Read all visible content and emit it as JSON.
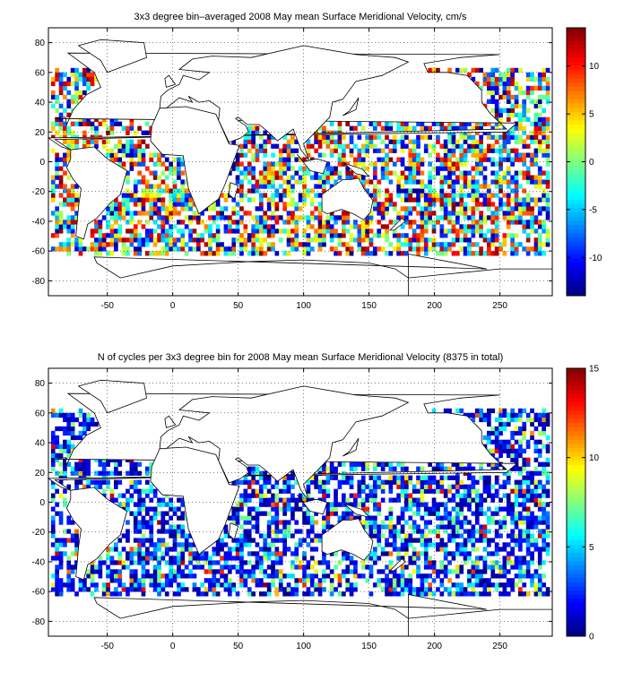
{
  "chart_data": [
    {
      "type": "heatmap",
      "title": "3x3 degree bin–averaged 2008 May mean Surface Meridional Velocity, cm/s",
      "xlabel": "",
      "ylabel": "",
      "xlim": [
        -95,
        290
      ],
      "ylim": [
        -90,
        90
      ],
      "xticks": [
        -50,
        0,
        50,
        100,
        150,
        200,
        250
      ],
      "yticks": [
        -80,
        -60,
        -40,
        -20,
        0,
        20,
        40,
        60,
        80
      ],
      "grid": true,
      "colorbar": {
        "clim": [
          -14,
          14
        ],
        "ticks": [
          -10,
          -5,
          0,
          5,
          10
        ],
        "colormap": "jet"
      },
      "bin_size_deg": 3,
      "values_description_note": ""
    },
    {
      "type": "heatmap",
      "title": "N of cycles per 3x3 degree bin for 2008 May mean Surface Meridional Velocity (8375 in total)",
      "xlabel": "",
      "ylabel": "",
      "xlim": [
        -95,
        290
      ],
      "ylim": [
        -90,
        90
      ],
      "xticks": [
        -50,
        0,
        50,
        100,
        150,
        200,
        250
      ],
      "yticks": [
        -80,
        -60,
        -40,
        -20,
        0,
        20,
        40,
        60,
        80
      ],
      "grid": true,
      "colorbar": {
        "clim": [
          0,
          15
        ],
        "ticks": [
          0,
          5,
          10,
          15
        ],
        "colormap": "jet"
      },
      "bin_size_deg": 3,
      "total_cycles": 8375
    }
  ]
}
